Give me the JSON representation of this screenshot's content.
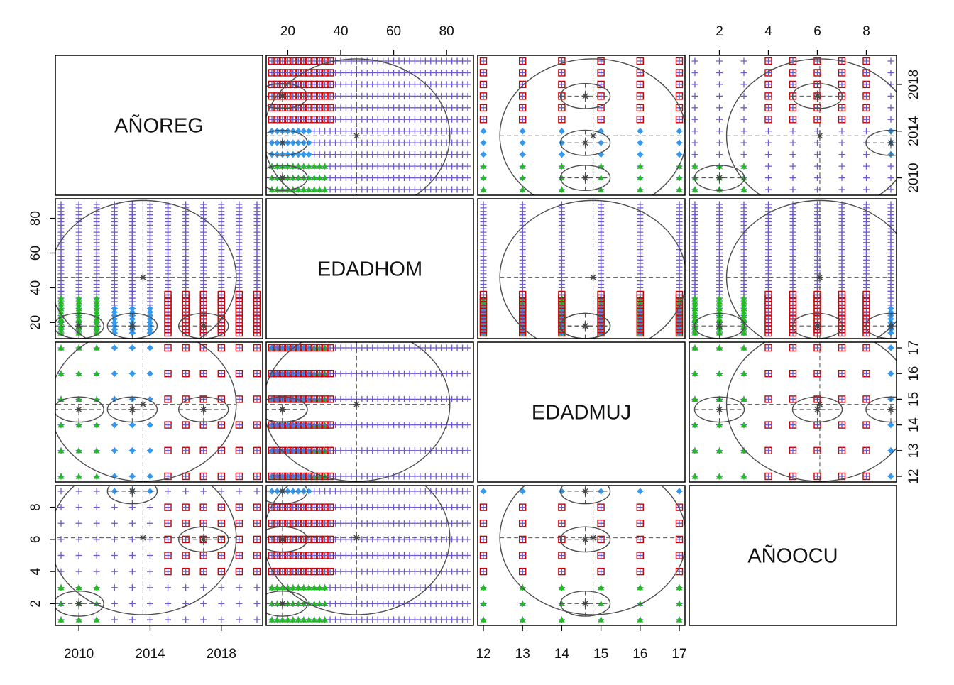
{
  "chart_data": {
    "type": "scatter",
    "subtype": "scatterplot-matrix",
    "title": "",
    "variables": [
      "AÑOREG",
      "EDADHOM",
      "EDADMUJ",
      "AÑOOCU"
    ],
    "axes": {
      "AÑOREG": {
        "range": [
          2009,
          2020
        ],
        "ticks": [
          2010,
          2014,
          2018
        ]
      },
      "EDADHOM": {
        "range": [
          14,
          88
        ],
        "ticks": [
          20,
          40,
          60,
          80
        ]
      },
      "EDADMUJ": {
        "range": [
          12,
          17
        ],
        "ticks": [
          12,
          13,
          14,
          15,
          16,
          17
        ]
      },
      "AÑOOCU": {
        "range": [
          1,
          9
        ],
        "ticks": [
          2,
          4,
          6,
          8
        ]
      }
    },
    "groups": [
      {
        "marker": "triangle",
        "color": "#22bb22"
      },
      {
        "marker": "diamond",
        "color": "#3399ee"
      },
      {
        "marker": "square",
        "color": "#cc0000"
      },
      {
        "marker": "plus",
        "color": "#6a5acd"
      }
    ],
    "group_values": {
      "AÑOREG": [
        [
          2009,
          2010,
          2011
        ],
        [
          2012,
          2013,
          2014
        ],
        [
          2015,
          2016,
          2017,
          2018,
          2019,
          2020
        ],
        [
          2009,
          2010,
          2011,
          2012,
          2013,
          2014,
          2015,
          2016,
          2017,
          2018,
          2019,
          2020
        ]
      ],
      "AÑOOCU": [
        [
          1,
          2,
          3
        ],
        [
          9
        ],
        [
          4,
          5,
          6,
          7,
          8
        ],
        [
          1,
          2,
          3,
          4,
          5,
          6,
          7,
          8,
          9
        ]
      ],
      "EDADMUJ": [
        [
          12,
          13,
          14,
          15,
          16,
          17
        ],
        [
          12,
          13,
          14,
          15,
          16,
          17
        ],
        [
          12,
          13,
          14,
          15,
          16,
          17
        ],
        [
          12,
          13,
          14,
          15,
          16,
          17
        ]
      ]
    },
    "age_bands": {
      "group_a": [
        14,
        34
      ],
      "group_b": [
        14,
        28
      ],
      "group_c": [
        14,
        36
      ],
      "overall": [
        14,
        88
      ]
    },
    "group_centers": [
      {
        "AÑOREG": 2010.0,
        "EDADHOM": 18,
        "EDADMUJ": 14.6,
        "AÑOOCU": 2.0
      },
      {
        "AÑOREG": 2013.0,
        "EDADHOM": 18,
        "EDADMUJ": 14.6,
        "AÑOOCU": 9.0
      },
      {
        "AÑOREG": 2017.0,
        "EDADHOM": 18,
        "EDADMUJ": 14.6,
        "AÑOOCU": 6.0
      },
      {
        "AÑOREG": 2013.6,
        "EDADHOM": 46,
        "EDADMUJ": 14.8,
        "AÑOOCU": 6.1
      }
    ],
    "legend": "none",
    "grid": false
  }
}
